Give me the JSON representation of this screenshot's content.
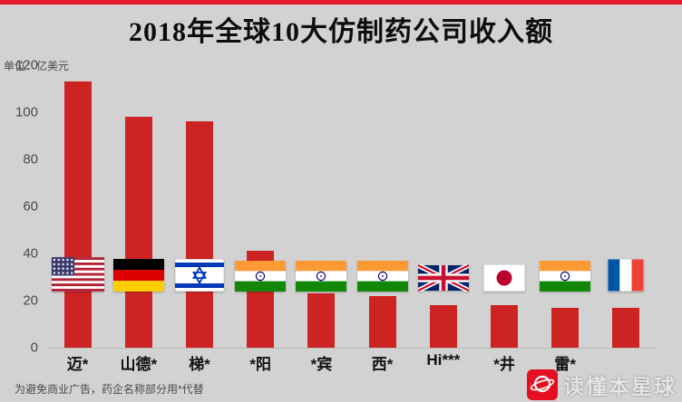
{
  "title": "2018年全球10大仿制药公司收入额",
  "unit_label": "单位：亿美元",
  "footnote": "为避免商业广告，药企名称部分用*代替",
  "watermark": {
    "text": "读懂本星球",
    "logo_color": "#e60013"
  },
  "colors": {
    "background": "#d2d2d2",
    "top_line": "#e8192c",
    "bar": "#cd2323",
    "axis_text": "#4a4a4a"
  },
  "chart_data": {
    "type": "bar",
    "title": "2018年全球10大仿制药公司收入额",
    "ylabel": "单位：亿美元",
    "ylim": [
      0,
      120
    ],
    "yticks": [
      0,
      20,
      40,
      60,
      80,
      100,
      120
    ],
    "grid": false,
    "legend": "none",
    "categories": [
      "迈*",
      "山德*",
      "梯*",
      "*阳",
      "*宾",
      "西*",
      "Hi***",
      "*井",
      "雷*",
      ""
    ],
    "values": [
      113,
      98,
      96,
      41,
      23,
      22,
      18,
      18,
      17,
      17
    ],
    "flags": [
      "us",
      "de",
      "il",
      "in",
      "in",
      "in",
      "gb",
      "jp",
      "in",
      "fr"
    ]
  }
}
